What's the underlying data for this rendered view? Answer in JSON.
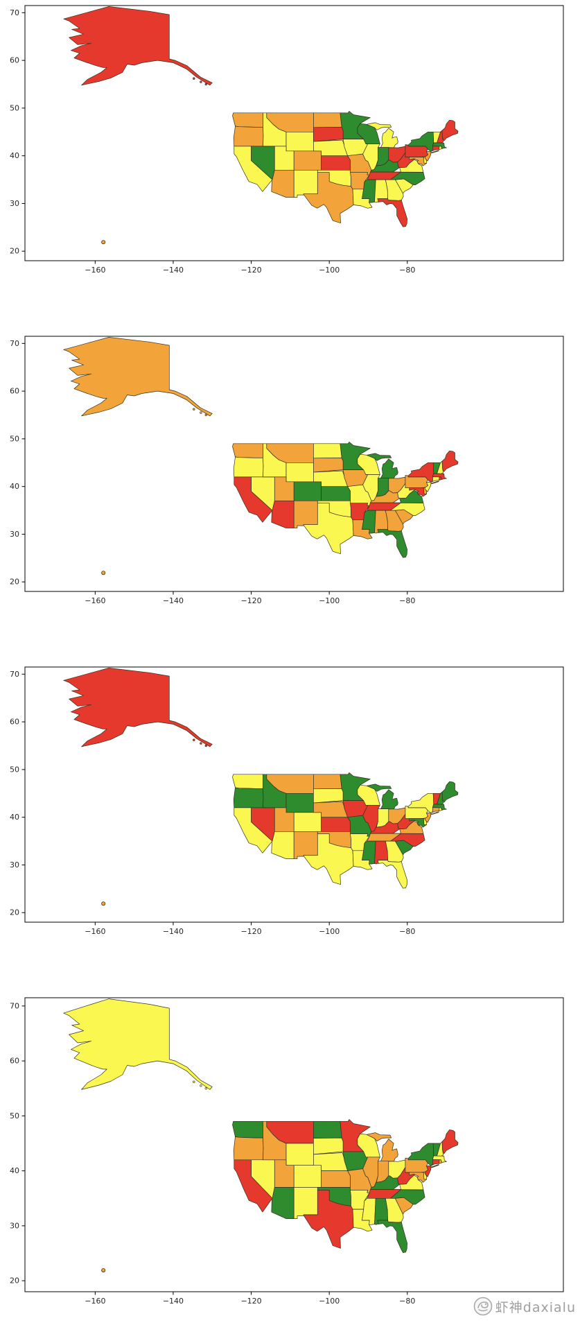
{
  "watermark": {
    "icon": "shrimp-logo",
    "text": "虾神daxialu"
  },
  "chart_data": {
    "type": "choropleth-map",
    "title": "",
    "description": "Four stacked matplotlib-style maps of US states (Alaska, Hawaii and conterminous states) filled with random categorical colors (red / orange / yellow / green)",
    "layout_hints": {
      "panels_stacked": 4,
      "grid": false,
      "legend": false,
      "frame": true
    },
    "axes": {
      "xlim": [
        -178,
        -40
      ],
      "ylim": [
        18,
        71.5
      ],
      "xticks": [
        -160,
        -140,
        -120,
        -100,
        -80
      ],
      "yticks": [
        20,
        30,
        40,
        50,
        60,
        70
      ]
    },
    "palette": {
      "r": "#e5392d",
      "o": "#f2a43a",
      "y": "#f9f750",
      "g": "#2e8b2e",
      "edge": "#34311f",
      "spine": "#000000",
      "tick_label": "#262626",
      "hawaii": "#c9a227"
    },
    "panels": [
      {
        "name": "panel-1",
        "alaska": "r",
        "hawaii": "o",
        "states": {
          "WA": "o",
          "OR": "o",
          "CA": "y",
          "NV": "g",
          "ID": "y",
          "MT": "o",
          "WY": "y",
          "UT": "y",
          "CO": "o",
          "AZ": "o",
          "NM": "y",
          "ND": "o",
          "SD": "r",
          "NE": "y",
          "KS": "r",
          "OK": "y",
          "TX": "o",
          "MN": "g",
          "IA": "y",
          "MO": "o",
          "AR": "o",
          "LA": "y",
          "WI": "g",
          "IL": "y",
          "MI": "y",
          "IN": "g",
          "OH": "r",
          "KY": "g",
          "TN": "r",
          "MS": "g",
          "AL": "y",
          "GA": "y",
          "FL": "r",
          "SC": "y",
          "NC": "g",
          "VA": "y",
          "WV": "r",
          "PA": "r",
          "MD": "o",
          "DE": "y",
          "NJ": "o",
          "NY": "g",
          "CT": "r",
          "RI": "y",
          "MA": "g",
          "VT": "y",
          "NH": "r",
          "ME": "r"
        }
      },
      {
        "name": "panel-2",
        "alaska": "o",
        "hawaii": "o",
        "states": {
          "WA": "o",
          "OR": "y",
          "CA": "r",
          "NV": "y",
          "ID": "y",
          "MT": "o",
          "WY": "y",
          "UT": "o",
          "CO": "g",
          "AZ": "r",
          "NM": "o",
          "ND": "y",
          "SD": "o",
          "NE": "y",
          "KS": "g",
          "OK": "y",
          "TX": "y",
          "MN": "g",
          "IA": "o",
          "MO": "y",
          "AR": "r",
          "LA": "o",
          "WI": "y",
          "IL": "y",
          "MI": "g",
          "IN": "g",
          "OH": "o",
          "KY": "o",
          "TN": "r",
          "MS": "g",
          "AL": "o",
          "GA": "o",
          "FL": "g",
          "SC": "o",
          "NC": "y",
          "VA": "g",
          "WV": "y",
          "PA": "o",
          "MD": "r",
          "DE": "o",
          "NJ": "y",
          "NY": "r",
          "CT": "y",
          "RI": "r",
          "MA": "r",
          "VT": "g",
          "NH": "y",
          "ME": "r"
        }
      },
      {
        "name": "panel-3",
        "alaska": "r",
        "hawaii": "o",
        "states": {
          "WA": "y",
          "OR": "g",
          "CA": "y",
          "NV": "r",
          "ID": "g",
          "MT": "o",
          "WY": "g",
          "UT": "o",
          "CO": "y",
          "AZ": "y",
          "NM": "o",
          "ND": "o",
          "SD": "y",
          "NE": "o",
          "KS": "r",
          "OK": "o",
          "TX": "y",
          "MN": "g",
          "IA": "r",
          "MO": "g",
          "AR": "y",
          "LA": "y",
          "WI": "y",
          "IL": "r",
          "MI": "g",
          "IN": "y",
          "OH": "o",
          "KY": "r",
          "TN": "o",
          "MS": "g",
          "AL": "r",
          "GA": "y",
          "FL": "y",
          "SC": "g",
          "NC": "r",
          "VA": "o",
          "WV": "r",
          "PA": "y",
          "MD": "g",
          "DE": "y",
          "NJ": "o",
          "NY": "y",
          "CT": "o",
          "RI": "y",
          "MA": "g",
          "VT": "r",
          "NH": "g",
          "ME": "g"
        }
      },
      {
        "name": "panel-4",
        "alaska": "y",
        "hawaii": "o",
        "states": {
          "WA": "g",
          "OR": "o",
          "CA": "r",
          "NV": "y",
          "ID": "o",
          "MT": "r",
          "WY": "y",
          "UT": "o",
          "CO": "y",
          "AZ": "g",
          "NM": "y",
          "ND": "g",
          "SD": "y",
          "NE": "y",
          "KS": "o",
          "OK": "g",
          "TX": "r",
          "MN": "r",
          "IA": "g",
          "MO": "o",
          "AR": "y",
          "LA": "y",
          "WI": "y",
          "IL": "o",
          "MI": "o",
          "IN": "o",
          "OH": "y",
          "KY": "g",
          "TN": "r",
          "MS": "y",
          "AL": "g",
          "GA": "y",
          "FL": "g",
          "SC": "o",
          "NC": "g",
          "VA": "y",
          "WV": "r",
          "PA": "o",
          "MD": "o",
          "DE": "y",
          "NJ": "r",
          "NY": "g",
          "CT": "r",
          "RI": "o",
          "MA": "y",
          "VT": "g",
          "NH": "y",
          "ME": "r"
        }
      }
    ]
  }
}
